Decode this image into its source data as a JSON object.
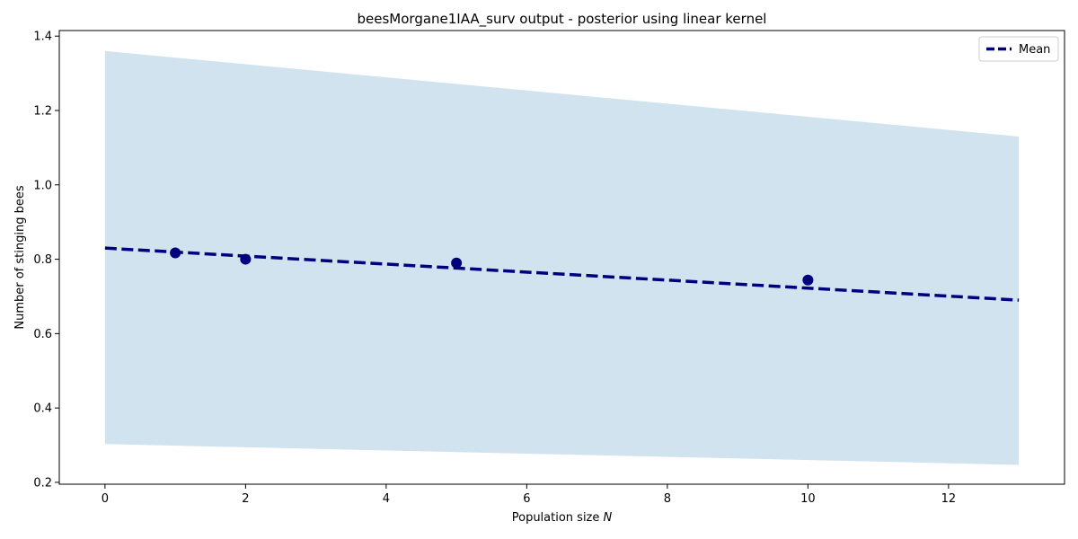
{
  "chart_data": {
    "type": "line",
    "title": "beesMorgane1IAA_surv output - posterior using linear kernel",
    "xlabel_main": "Population size ",
    "xlabel_var": "N",
    "ylabel": "Number of stinging bees",
    "xlim": [
      -0.65,
      13.65
    ],
    "ylim": [
      0.195,
      1.415
    ],
    "xticks": [
      0,
      2,
      4,
      6,
      8,
      10,
      12
    ],
    "xtick_labels": [
      "0",
      "2",
      "4",
      "6",
      "8",
      "10",
      "12"
    ],
    "yticks": [
      0.2,
      0.4,
      0.6,
      0.8,
      1.0,
      1.2,
      1.4
    ],
    "ytick_labels": [
      "0.2",
      "0.4",
      "0.6",
      "0.8",
      "1.0",
      "1.2",
      "1.4"
    ],
    "band": {
      "x": [
        0,
        13
      ],
      "upper": [
        1.36,
        1.13
      ],
      "lower": [
        0.303,
        0.247
      ]
    },
    "series": [
      {
        "name": "Mean",
        "x": [
          0,
          13
        ],
        "values": [
          0.83,
          0.69
        ]
      }
    ],
    "points": {
      "x": [
        1,
        2,
        5,
        10
      ],
      "y": [
        0.817,
        0.8,
        0.79,
        0.744
      ]
    },
    "legend": {
      "position": "top-right"
    },
    "colors": {
      "band": "#d1e3ef",
      "mean_line": "#00007f",
      "points": "#00007f",
      "axes": "#000000"
    }
  }
}
